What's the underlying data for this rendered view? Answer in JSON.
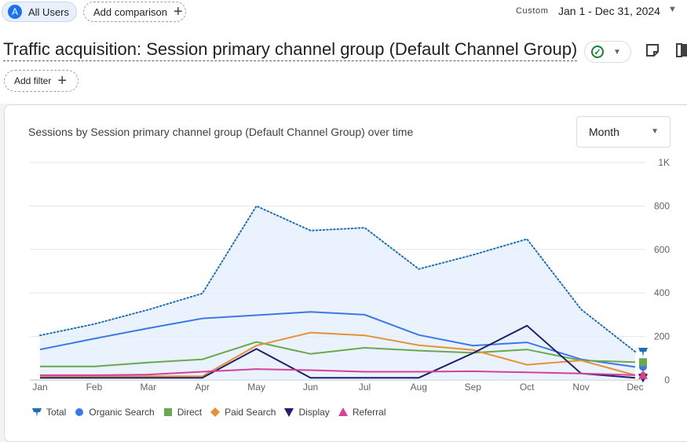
{
  "topbar": {
    "segment_avatar": "A",
    "segment_label": "All Users",
    "add_comparison_label": "Add comparison",
    "date_range_type": "Custom",
    "date_range": "Jan 1 - Dec 31, 2024"
  },
  "header": {
    "title": "Traffic acquisition: Session primary channel group (Default Channel Group)",
    "add_filter_label": "Add filter"
  },
  "card": {
    "chart_title": "Sessions by Session primary channel group (Default Channel Group) over time",
    "granularity": "Month"
  },
  "colors": {
    "total": "#1e6fb8",
    "organic": "#3b78e7",
    "direct": "#6aa84f",
    "paid": "#e69138",
    "display": "#1f1f6b",
    "referral": "#d63f9c",
    "grid": "#e6e6e6"
  },
  "chart_data": {
    "type": "line",
    "x": [
      "Jan",
      "Feb",
      "Mar",
      "Apr",
      "May",
      "Jun",
      "Jul",
      "Aug",
      "Sep",
      "Oct",
      "Nov",
      "Dec"
    ],
    "ylim": [
      0,
      1000
    ],
    "yticks": [
      {
        "value": 0,
        "label": "0"
      },
      {
        "value": 200,
        "label": "200"
      },
      {
        "value": 400,
        "label": "400"
      },
      {
        "value": 600,
        "label": "600"
      },
      {
        "value": 800,
        "label": "800"
      },
      {
        "value": 1000,
        "label": "1K"
      }
    ],
    "grid": true,
    "legend_position": "bottom-left",
    "series": [
      {
        "name": "Total",
        "key": "total",
        "marker": "pin",
        "style": "dotted-area",
        "values": [
          205,
          257,
          323,
          398,
          800,
          687,
          700,
          510,
          575,
          648,
          325,
          130
        ]
      },
      {
        "name": "Organic Search",
        "key": "organic",
        "marker": "circle",
        "style": "line",
        "values": [
          140,
          190,
          238,
          283,
          298,
          313,
          300,
          207,
          158,
          173,
          95,
          60
        ]
      },
      {
        "name": "Direct",
        "key": "direct",
        "marker": "square",
        "style": "line",
        "values": [
          62,
          62,
          80,
          95,
          175,
          120,
          148,
          135,
          125,
          140,
          90,
          82
        ]
      },
      {
        "name": "Paid Search",
        "key": "paid",
        "marker": "diamond",
        "style": "line",
        "values": [
          17,
          17,
          17,
          17,
          158,
          218,
          205,
          160,
          138,
          70,
          90,
          22
        ]
      },
      {
        "name": "Display",
        "key": "display",
        "marker": "triangle-down",
        "style": "line",
        "values": [
          10,
          10,
          10,
          10,
          143,
          10,
          10,
          10,
          123,
          250,
          30,
          10
        ]
      },
      {
        "name": "Referral",
        "key": "referral",
        "marker": "triangle-up",
        "style": "line",
        "values": [
          22,
          22,
          25,
          38,
          50,
          45,
          38,
          38,
          40,
          35,
          30,
          22
        ]
      }
    ]
  }
}
